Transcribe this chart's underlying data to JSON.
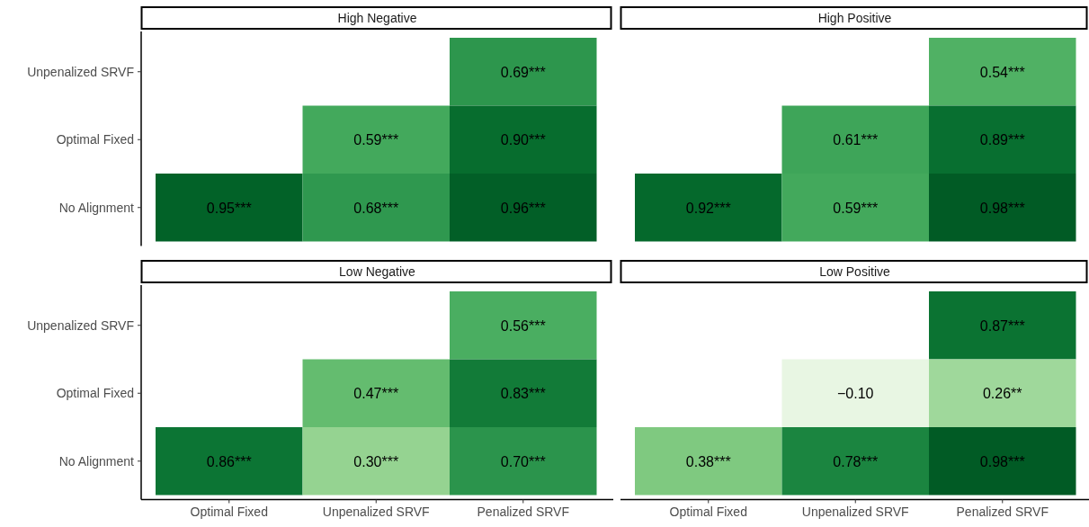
{
  "chart_data": [
    {
      "type": "heatmap",
      "title": "High Negative",
      "categories": [
        "Optimal Fixed",
        "Unpenalized SRVF",
        "Penalized SRVF"
      ],
      "y_categories": [
        "Unpenalized SRVF",
        "Optimal Fixed",
        "No Alignment"
      ],
      "cells": [
        [
          null,
          null,
          0.69
        ],
        [
          null,
          0.59,
          0.9
        ],
        [
          0.95,
          0.68,
          0.96
        ]
      ],
      "cell_labels": [
        [
          null,
          null,
          "0.69***"
        ],
        [
          null,
          "0.59***",
          "0.90***"
        ],
        [
          "0.95***",
          "0.68***",
          "0.96***"
        ]
      ],
      "tick_labels": "y"
    },
    {
      "type": "heatmap",
      "title": "High Positive",
      "categories": [
        "Optimal Fixed",
        "Unpenalized SRVF",
        "Penalized SRVF"
      ],
      "y_categories": [
        "Unpenalized SRVF",
        "Optimal Fixed",
        "No Alignment"
      ],
      "cells": [
        [
          null,
          null,
          0.54
        ],
        [
          null,
          0.61,
          0.89
        ],
        [
          0.92,
          0.59,
          0.98
        ]
      ],
      "cell_labels": [
        [
          null,
          null,
          "0.54***"
        ],
        [
          null,
          "0.61***",
          "0.89***"
        ],
        [
          "0.92***",
          "0.59***",
          "0.98***"
        ]
      ],
      "tick_labels": false
    },
    {
      "type": "heatmap",
      "title": "Low Negative",
      "categories": [
        "Optimal Fixed",
        "Unpenalized SRVF",
        "Penalized SRVF"
      ],
      "y_categories": [
        "Unpenalized SRVF",
        "Optimal Fixed",
        "No Alignment"
      ],
      "cells": [
        [
          null,
          null,
          0.56
        ],
        [
          null,
          0.47,
          0.83
        ],
        [
          0.86,
          0.3,
          0.7
        ]
      ],
      "cell_labels": [
        [
          null,
          null,
          "0.56***"
        ],
        [
          null,
          "0.47***",
          "0.83***"
        ],
        [
          "0.86***",
          "0.30***",
          "0.70***"
        ]
      ]
    },
    {
      "type": "heatmap",
      "title": "Low Positive",
      "categories": [
        "Optimal Fixed",
        "Unpenalized SRVF",
        "Penalized SRVF"
      ],
      "y_categories": [
        "Unpenalized SRVF",
        "Optimal Fixed",
        "No Alignment"
      ],
      "cells": [
        [
          null,
          null,
          0.87
        ],
        [
          null,
          -0.1,
          0.26
        ],
        [
          0.38,
          0.78,
          0.98
        ]
      ],
      "cell_labels": [
        [
          null,
          null,
          "0.87***"
        ],
        [
          null,
          "−0.10",
          "0.26**"
        ],
        [
          "0.38***",
          "0.78***",
          "0.98***"
        ]
      ],
      "tick_labels": "x"
    }
  ]
}
